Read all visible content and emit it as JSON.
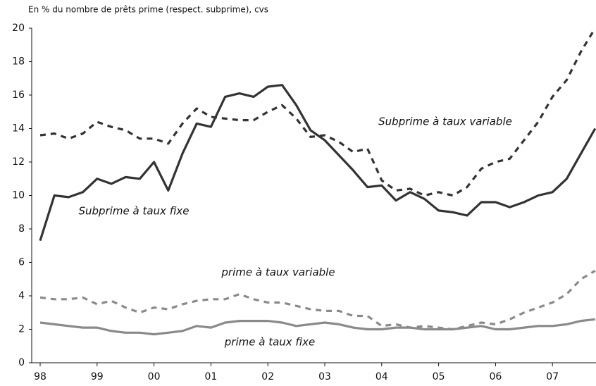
{
  "chart_data": {
    "type": "line",
    "subtitle": "En % du nombre de prêts prime (respect. subprime), cvs",
    "categories": [
      "98",
      null,
      null,
      null,
      "99",
      null,
      null,
      null,
      "00",
      null,
      null,
      null,
      "01",
      null,
      null,
      null,
      "02",
      null,
      null,
      null,
      "03",
      null,
      null,
      null,
      "04",
      null,
      null,
      null,
      "05",
      null,
      null,
      null,
      "06",
      null,
      null,
      null,
      "07",
      null,
      null,
      null
    ],
    "series": [
      {
        "name": "Subprime à taux fixe",
        "color": "#333333",
        "dashed": false,
        "values": [
          7.3,
          10.0,
          9.9,
          10.2,
          11.0,
          10.7,
          11.1,
          11.0,
          12.0,
          10.3,
          12.5,
          14.3,
          14.1,
          15.9,
          16.1,
          15.9,
          16.5,
          16.6,
          15.4,
          13.9,
          13.3,
          12.4,
          11.5,
          10.5,
          10.6,
          9.7,
          10.2,
          9.8,
          9.1,
          9.0,
          8.8,
          9.6,
          9.6,
          9.3,
          9.6,
          10.0,
          10.2,
          11.0,
          12.5,
          14.0
        ]
      },
      {
        "name": "Subprime à taux variable",
        "color": "#333333",
        "dashed": true,
        "values": [
          13.6,
          13.7,
          13.4,
          13.7,
          14.4,
          14.1,
          13.9,
          13.4,
          13.4,
          13.1,
          14.3,
          15.2,
          14.7,
          14.6,
          14.5,
          14.5,
          15.0,
          15.4,
          14.6,
          13.5,
          13.6,
          13.2,
          12.6,
          12.8,
          10.9,
          10.3,
          10.4,
          10.0,
          10.2,
          10.0,
          10.5,
          11.6,
          12.0,
          12.2,
          13.3,
          14.4,
          15.9,
          16.9,
          18.6,
          20.0
        ]
      },
      {
        "name": "prime à taux variable",
        "color": "#8a8a8a",
        "dashed": true,
        "values": [
          3.9,
          3.8,
          3.8,
          3.9,
          3.5,
          3.7,
          3.3,
          3.0,
          3.3,
          3.2,
          3.5,
          3.7,
          3.8,
          3.8,
          4.1,
          3.8,
          3.6,
          3.6,
          3.4,
          3.2,
          3.1,
          3.1,
          2.8,
          2.8,
          2.2,
          2.3,
          2.1,
          2.2,
          2.1,
          2.0,
          2.2,
          2.4,
          2.3,
          2.6,
          3.0,
          3.3,
          3.6,
          4.1,
          5.0,
          5.5
        ]
      },
      {
        "name": "prime à taux fixe",
        "color": "#8a8a8a",
        "dashed": false,
        "values": [
          2.4,
          2.3,
          2.2,
          2.1,
          2.1,
          1.9,
          1.8,
          1.8,
          1.7,
          1.8,
          1.9,
          2.2,
          2.1,
          2.4,
          2.5,
          2.5,
          2.5,
          2.4,
          2.2,
          2.3,
          2.4,
          2.3,
          2.1,
          2.0,
          2.0,
          2.1,
          2.1,
          2.0,
          2.0,
          2.0,
          2.1,
          2.2,
          2.0,
          2.0,
          2.1,
          2.2,
          2.2,
          2.3,
          2.5,
          2.6
        ]
      }
    ],
    "ylim": [
      0,
      20
    ],
    "yticks": [
      0,
      2,
      4,
      6,
      8,
      10,
      12,
      14,
      16,
      18,
      20
    ],
    "grid": false
  }
}
